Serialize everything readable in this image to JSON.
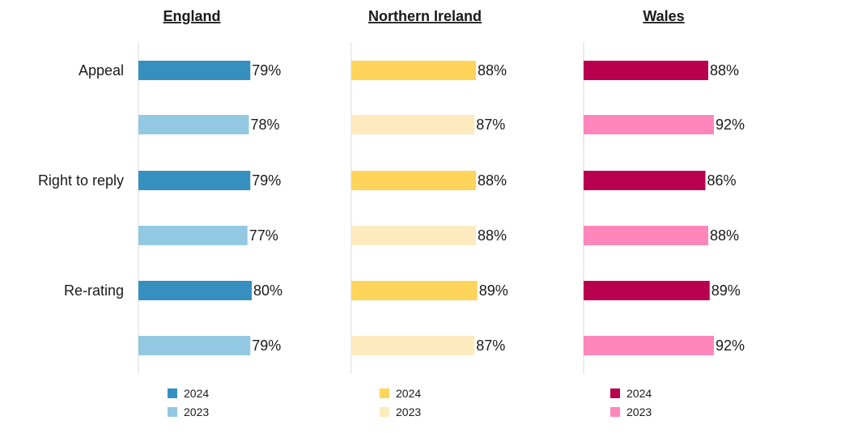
{
  "chart_data": {
    "type": "bar",
    "orientation": "horizontal",
    "categories": [
      "Appeal",
      "Right to reply",
      "Re-rating"
    ],
    "xlim": [
      0,
      100
    ],
    "value_suffix": "%",
    "grid": false,
    "legend_placement": "bottom",
    "panels": [
      {
        "title": "England",
        "series": [
          {
            "name": "2024",
            "color": "#3590c0",
            "values": [
              79,
              79,
              80
            ]
          },
          {
            "name": "2023",
            "color": "#93c8e3",
            "values": [
              78,
              77,
              79
            ]
          }
        ]
      },
      {
        "title": "Northern Ireland",
        "series": [
          {
            "name": "2024",
            "color": "#ffd45a",
            "values": [
              88,
              88,
              89
            ]
          },
          {
            "name": "2023",
            "color": "#fdebbf",
            "values": [
              87,
              88,
              87
            ]
          }
        ]
      },
      {
        "title": "Wales",
        "series": [
          {
            "name": "2024",
            "color": "#b8004e",
            "values": [
              88,
              86,
              89
            ]
          },
          {
            "name": "2023",
            "color": "#ff86bb",
            "values": [
              92,
              88,
              92
            ]
          }
        ]
      }
    ]
  }
}
